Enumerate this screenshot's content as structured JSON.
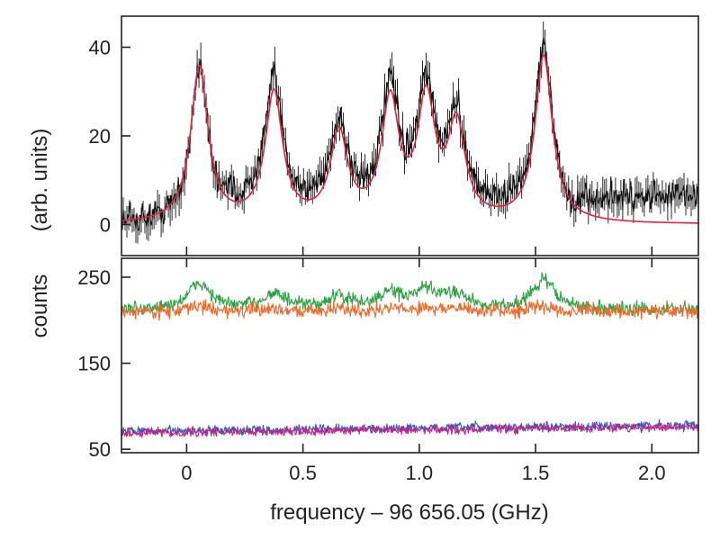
{
  "chart_data": [
    {
      "type": "line",
      "panel": "top",
      "ylabel": "(arb. units)",
      "xlim": [
        -0.28,
        2.2
      ],
      "ylim": [
        -7,
        47
      ],
      "xticks": [
        0,
        0.5,
        1.0,
        1.5,
        2.0
      ],
      "yticks": [
        0,
        20,
        40
      ],
      "ytick_labels": [
        "0",
        "20",
        "40"
      ],
      "peaks": [
        {
          "x": 0.055,
          "height": 35.0
        },
        {
          "x": 0.375,
          "height": 29.0
        },
        {
          "x": 0.655,
          "height": 19.5
        },
        {
          "x": 0.875,
          "height": 26.5
        },
        {
          "x": 1.03,
          "height": 26.5
        },
        {
          "x": 1.16,
          "height": 21.0
        },
        {
          "x": 1.535,
          "height": 37.5
        }
      ],
      "series": [
        {
          "name": "",
          "style": "data points with vertical error bars",
          "color": "#111111",
          "baseline_tail": 6.5
        },
        {
          "name": "",
          "style": "fit curve",
          "color": "#e2243c",
          "baseline_tail": 0.0
        }
      ],
      "grid": false
    },
    {
      "type": "line",
      "panel": "bottom",
      "ylabel": "counts",
      "xlabel": "frequency – 96 656.05  (GHz)",
      "xlim": [
        -0.28,
        2.2
      ],
      "ylim": [
        46,
        272
      ],
      "xticks": [
        0,
        0.5,
        1.0,
        1.5,
        2.0
      ],
      "xtick_labels": [
        "0",
        "0.5",
        "1.0",
        "1.5",
        "2.0"
      ],
      "yticks": [
        50,
        150,
        250
      ],
      "ytick_labels": [
        "50",
        "150",
        "250"
      ],
      "series": [
        {
          "name": "",
          "color": "#2ca243",
          "baseline": 212,
          "peak_heights": [
            30,
            18,
            14,
            18,
            20,
            17,
            34
          ]
        },
        {
          "name": "",
          "color": "#ec6a2a",
          "baseline": 210,
          "peak_heights": [
            6,
            3,
            3,
            3,
            4,
            3,
            6
          ]
        },
        {
          "name": "",
          "color": "#2f5fb0",
          "baseline": 71,
          "slope": 7
        },
        {
          "name": "",
          "color": "#c0218a",
          "baseline": 69,
          "slope": 7
        }
      ],
      "grid": false
    }
  ]
}
